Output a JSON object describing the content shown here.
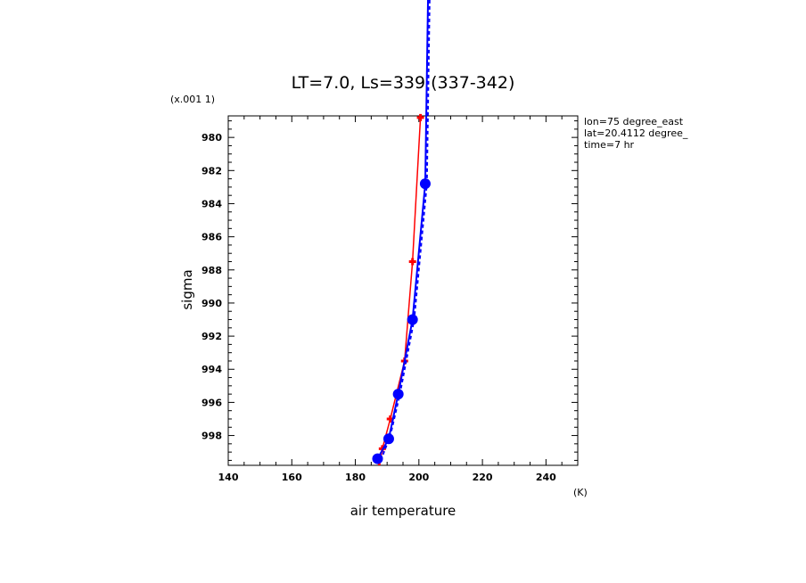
{
  "chart_data": {
    "type": "line",
    "title": "LT=7.0, Ls=339 (337-342)",
    "xlabel": "air temperature",
    "ylabel": "sigma",
    "x_unit": "(K)",
    "y_unit": "(x.001 1)",
    "xlim": [
      140,
      250
    ],
    "ylim": [
      999.8,
      978.7
    ],
    "x_ticks": [
      140,
      160,
      180,
      200,
      220,
      240
    ],
    "y_ticks": [
      980,
      982,
      984,
      986,
      988,
      990,
      992,
      994,
      996,
      998
    ],
    "annotations": [
      "lon=75 degree_east",
      "lat=20.4112 degree_",
      "time=7 hr"
    ],
    "colors": {
      "red_series": "#ff0000",
      "blue_series": "#0000ff",
      "axes": "#000000"
    },
    "series": [
      {
        "color": "red",
        "marker": "plus",
        "points": [
          [
            187.5,
            999.9
          ],
          [
            188.5,
            998.8
          ],
          [
            191.0,
            997.0
          ],
          [
            195.5,
            993.5
          ],
          [
            198.0,
            987.5
          ],
          [
            200.5,
            978.8
          ]
        ]
      },
      {
        "color": "blue",
        "marker": "circle",
        "points": [
          [
            187.0,
            999.4
          ],
          [
            190.5,
            998.2
          ],
          [
            193.5,
            995.5
          ],
          [
            198.0,
            991.0
          ],
          [
            202.0,
            982.8
          ],
          [
            203.0,
            970.0
          ]
        ]
      },
      {
        "color": "blue",
        "style": "dashed",
        "points": [
          [
            188.0,
            999.5
          ],
          [
            191.0,
            998.0
          ],
          [
            194.0,
            995.5
          ],
          [
            198.5,
            991.0
          ],
          [
            202.5,
            982.8
          ],
          [
            203.5,
            970.0
          ]
        ]
      }
    ]
  }
}
